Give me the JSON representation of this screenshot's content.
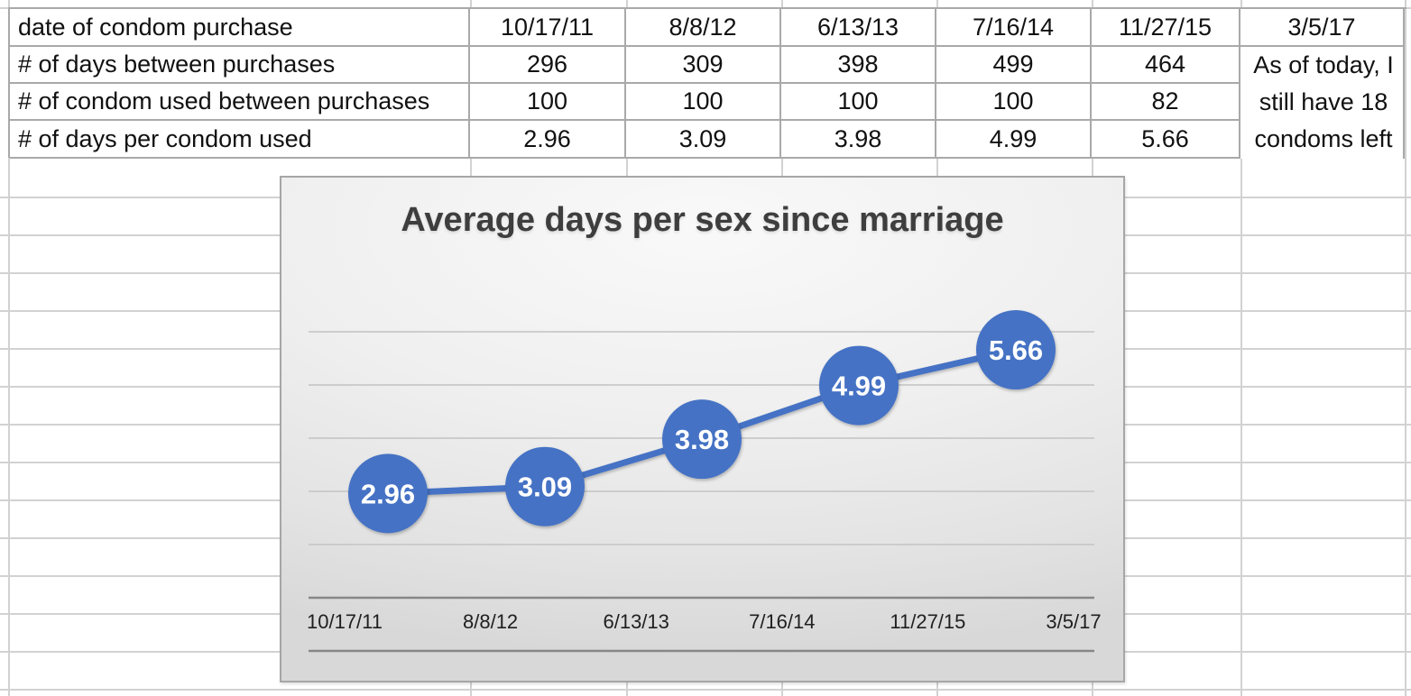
{
  "table": {
    "rows": [
      {
        "label": "date of condom purchase",
        "values": [
          "10/17/11",
          "8/8/12",
          "6/13/13",
          "7/16/14",
          "11/27/15",
          "3/5/17"
        ]
      },
      {
        "label": "# of days between purchases",
        "values": [
          "296",
          "309",
          "398",
          "499",
          "464"
        ]
      },
      {
        "label": "# of condom used between purchases",
        "values": [
          "100",
          "100",
          "100",
          "100",
          "82"
        ]
      },
      {
        "label": "# of days per condom used",
        "values": [
          "2.96",
          "3.09",
          "3.98",
          "4.99",
          "5.66"
        ]
      }
    ],
    "note_lines": [
      "As of today, I",
      "still have 18",
      "condoms left"
    ]
  },
  "chart_data": {
    "type": "line",
    "title": "Average days per sex since marriage",
    "categories": [
      "10/17/11",
      "8/8/12",
      "6/13/13",
      "7/16/14",
      "11/27/15",
      "3/5/17"
    ],
    "series": [
      {
        "name": "# of days per condom used",
        "values": [
          2.96,
          3.09,
          3.98,
          4.99,
          5.66
        ]
      }
    ],
    "data_labels": [
      "2.96",
      "3.09",
      "3.98",
      "4.99",
      "5.66"
    ],
    "xlabel": "",
    "ylabel": "",
    "ylim": [
      0,
      6
    ],
    "gridline_unit": 1,
    "legend": "none",
    "grid": true,
    "line_color": "#4472C4",
    "marker_color": "#4472C4",
    "data_label_color": "#ffffff",
    "title_color": "#3e3e3e"
  }
}
